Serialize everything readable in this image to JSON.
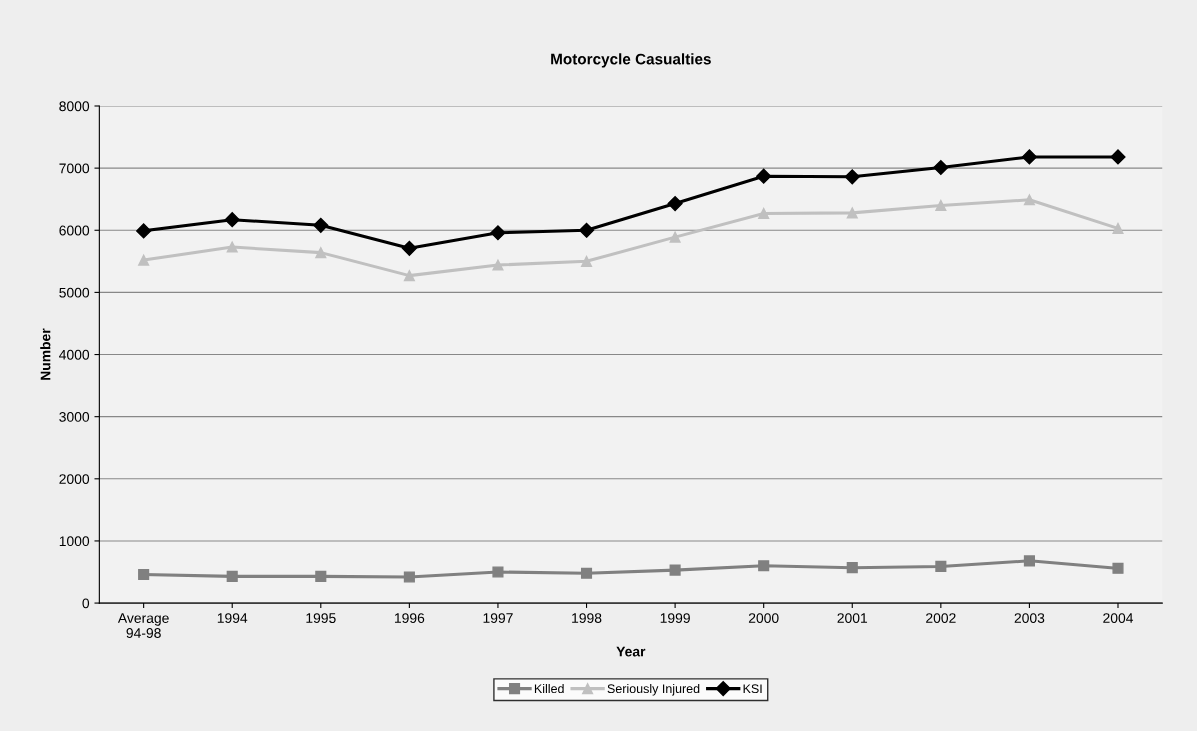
{
  "chart_data": {
    "type": "line",
    "title": "Motorcycle Casualties",
    "xlabel": "Year",
    "ylabel": "Number",
    "categories": [
      "Average\n94-98",
      "1994",
      "1995",
      "1996",
      "1997",
      "1998",
      "1999",
      "2000",
      "2001",
      "2002",
      "2003",
      "2004"
    ],
    "series": [
      {
        "name": "Killed",
        "color": "#808080",
        "marker": "square",
        "values": [
          460,
          430,
          430,
          420,
          500,
          480,
          530,
          600,
          570,
          590,
          680,
          560
        ]
      },
      {
        "name": "Seriously Injured",
        "color": "#c0c0c0",
        "marker": "triangle",
        "values": [
          5520,
          5730,
          5640,
          5270,
          5440,
          5500,
          5890,
          6270,
          6280,
          6400,
          6490,
          6030
        ]
      },
      {
        "name": "KSI",
        "color": "#000000",
        "marker": "diamond",
        "values": [
          5990,
          6170,
          6080,
          5710,
          5960,
          6000,
          6430,
          6870,
          6860,
          7010,
          7180,
          7180
        ]
      }
    ],
    "ylim": [
      0,
      8000
    ],
    "yticks": [
      0,
      1000,
      2000,
      3000,
      4000,
      5000,
      6000,
      7000,
      8000
    ],
    "grid": "y",
    "legend": "bottom"
  }
}
